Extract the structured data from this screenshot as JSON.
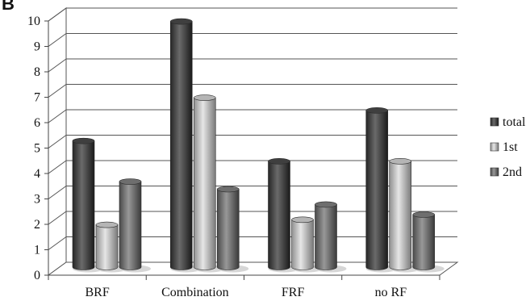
{
  "panel_label": "B",
  "chart_data": {
    "type": "bar",
    "categories": [
      "BRF",
      "Combination",
      "FRF",
      "no RF"
    ],
    "series": [
      {
        "name": "total",
        "values": [
          4.9,
          9.6,
          4.1,
          6.1
        ],
        "color": "#3f3f3f"
      },
      {
        "name": "1st",
        "values": [
          1.6,
          6.6,
          1.8,
          4.1
        ],
        "color": "#b5b5b5"
      },
      {
        "name": "2nd",
        "values": [
          3.3,
          3.0,
          2.4,
          2.0
        ],
        "color": "#6e6e6e"
      }
    ],
    "yticks": [
      "0",
      "1",
      "2",
      "3",
      "4",
      "5",
      "6",
      "7",
      "8",
      "9",
      "10"
    ],
    "ylim": [
      0,
      10
    ],
    "grid": true,
    "legend_position": "right",
    "style": "3d-cylinder"
  }
}
